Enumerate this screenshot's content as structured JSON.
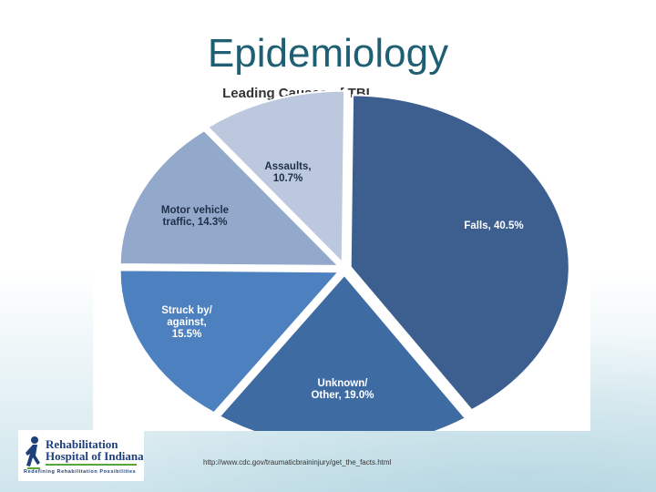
{
  "slide": {
    "title": "Epidemiology",
    "source": "http://www.cdc.gov/traumaticbraininjury/get_the_facts.html"
  },
  "logo": {
    "line1": "Rehabilitation",
    "line2": "Hospital of Indiana",
    "tagline": "Redefining Rehabilitation Possibilities",
    "icon": "running-figure-icon"
  },
  "chart_data": {
    "type": "pie",
    "title": "Leading Causes of TBI",
    "legend": "none",
    "slices": [
      {
        "name": "Falls",
        "value": 40.5,
        "label_lines": [
          "Falls, 40.5%"
        ],
        "color": "#3c5f8f",
        "text_color": "#ffffff"
      },
      {
        "name": "Unknown/ Other",
        "value": 19.0,
        "label_lines": [
          "Unknown/",
          "Other, 19.0%"
        ],
        "color": "#3f6ba3",
        "text_color": "#ffffff"
      },
      {
        "name": "Struck by/ against",
        "value": 15.5,
        "label_lines": [
          "Struck by/",
          "against,",
          "15.5%"
        ],
        "color": "#4c80bf",
        "text_color": "#ffffff"
      },
      {
        "name": "Motor vehicle traffic",
        "value": 14.3,
        "label_lines": [
          "Motor vehicle",
          "traffic, 14.3%"
        ],
        "color": "#93a9cc",
        "text_color": "#1f2f47"
      },
      {
        "name": "Assaults",
        "value": 10.7,
        "label_lines": [
          "Assaults,",
          "10.7%"
        ],
        "color": "#bcc8de",
        "text_color": "#1f2f47"
      }
    ]
  }
}
